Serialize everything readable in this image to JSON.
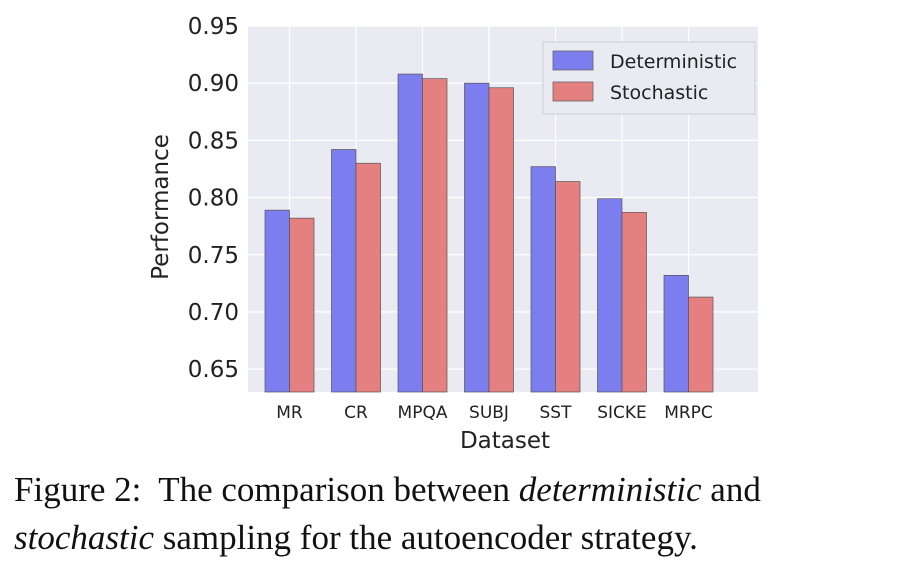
{
  "chart_data": {
    "type": "bar",
    "title": "",
    "xlabel": "Dataset",
    "ylabel": "Performance",
    "ylim": [
      0.63,
      0.95
    ],
    "yticks": [
      "0.65",
      "0.70",
      "0.75",
      "0.80",
      "0.85",
      "0.90",
      "0.95"
    ],
    "categories": [
      "MR",
      "CR",
      "MPQA",
      "SUBJ",
      "SST",
      "SICKE",
      "MRPC"
    ],
    "series": [
      {
        "name": "Deterministic",
        "color": "#7c7ef0",
        "values": [
          0.789,
          0.842,
          0.908,
          0.9,
          0.827,
          0.799,
          0.732
        ]
      },
      {
        "name": "Stochastic",
        "color": "#e58080",
        "values": [
          0.782,
          0.83,
          0.904,
          0.896,
          0.814,
          0.787,
          0.713
        ]
      }
    ],
    "grid": true,
    "legend_position": "top-right"
  },
  "caption": {
    "label": "Figure 2:",
    "part1": "The comparison between",
    "em1": "deterministic",
    "part2": "and",
    "em2": "stochastic",
    "part3": "sampling for the autoencoder strategy."
  }
}
